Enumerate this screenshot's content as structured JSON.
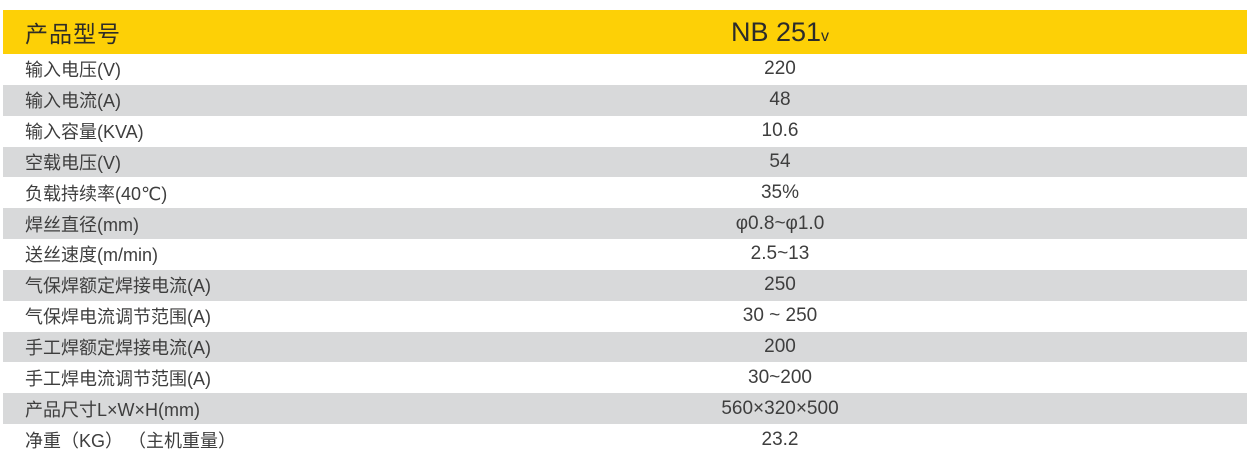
{
  "table": {
    "header": {
      "label": "产品型号",
      "model": "NB 251",
      "model_subscript": "v"
    },
    "header_bg_color": "#FDD006",
    "alt_row_color": "#D8D9DA",
    "rows": [
      {
        "label": "输入电压(V)",
        "value": "220"
      },
      {
        "label": "输入电流(A)",
        "value": "48"
      },
      {
        "label": "输入容量(KVA)",
        "value": "10.6"
      },
      {
        "label": "空载电压(V)",
        "value": "54"
      },
      {
        "label": "负载持续率(40℃)",
        "value": "35%"
      },
      {
        "label": "焊丝直径(mm)",
        "value": "φ0.8~φ1.0"
      },
      {
        "label": "送丝速度(m/min)",
        "value": "2.5~13"
      },
      {
        "label": "气保焊额定焊接电流(A)",
        "value": "250"
      },
      {
        "label": "气保焊电流调节范围(A)",
        "value": "30 ~ 250"
      },
      {
        "label": "手工焊额定焊接电流(A)",
        "value": "200"
      },
      {
        "label": "手工焊电流调节范围(A)",
        "value": "30~200"
      },
      {
        "label": "产品尺寸L×W×H(mm)",
        "value": "560×320×500"
      },
      {
        "label": "净重（KG） （主机重量）",
        "value": "23.2"
      }
    ]
  }
}
